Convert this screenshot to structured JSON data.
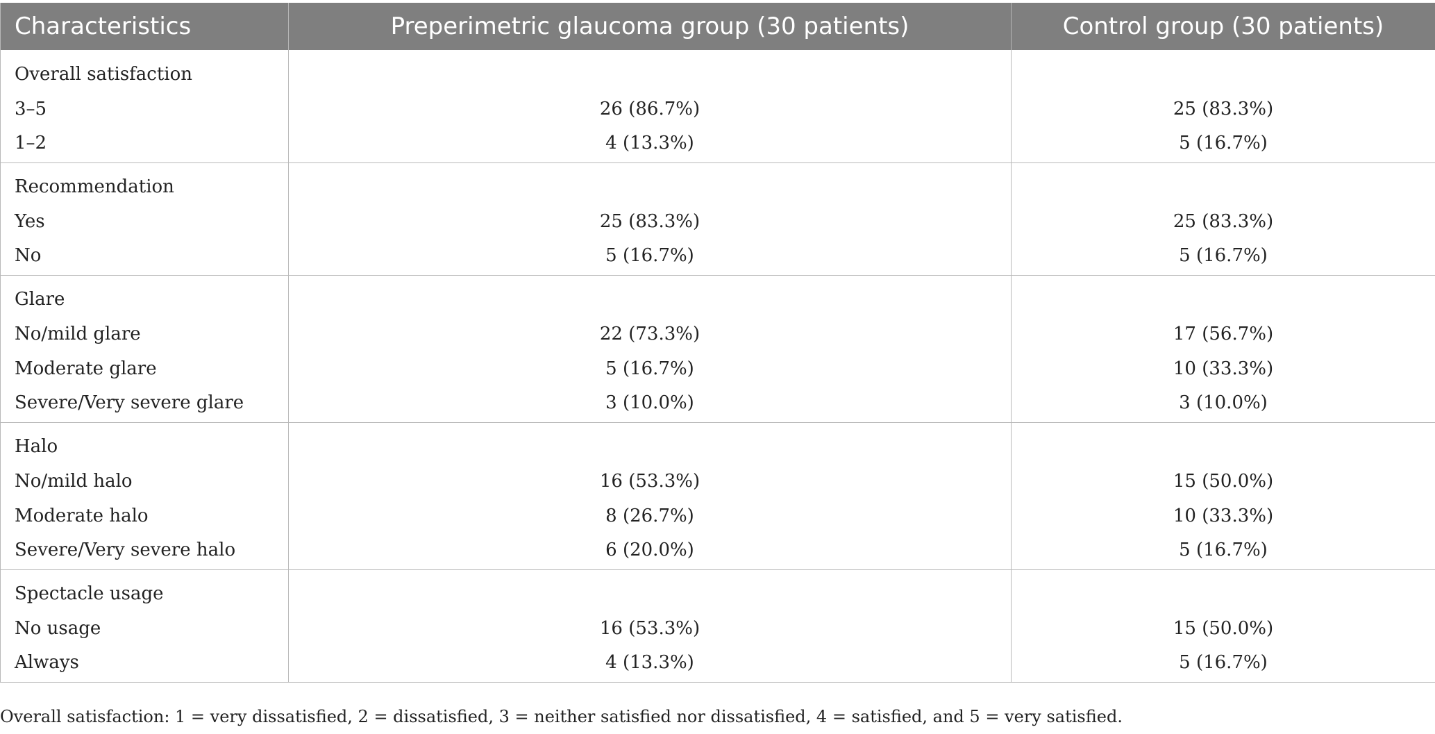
{
  "table": {
    "headers": [
      "Characteristics",
      "Preperimetric glaucoma group (30 patients)",
      "Control group (30 patients)"
    ],
    "groups": [
      {
        "title": "Overall satisfaction",
        "rows": [
          {
            "label": "3–5",
            "ppg": "26 (86.7%)",
            "control": "25 (83.3%)"
          },
          {
            "label": "1–2",
            "ppg": "4 (13.3%)",
            "control": "5 (16.7%)"
          }
        ]
      },
      {
        "title": "Recommendation",
        "rows": [
          {
            "label": "Yes",
            "ppg": "25 (83.3%)",
            "control": "25 (83.3%)"
          },
          {
            "label": "No",
            "ppg": "5 (16.7%)",
            "control": "5 (16.7%)"
          }
        ]
      },
      {
        "title": "Glare",
        "rows": [
          {
            "label": "No/mild glare",
            "ppg": "22 (73.3%)",
            "control": "17 (56.7%)"
          },
          {
            "label": "Moderate glare",
            "ppg": "5 (16.7%)",
            "control": "10 (33.3%)"
          },
          {
            "label": "Severe/Very severe glare",
            "ppg": "3 (10.0%)",
            "control": "3 (10.0%)"
          }
        ]
      },
      {
        "title": "Halo",
        "rows": [
          {
            "label": "No/mild halo",
            "ppg": "16 (53.3%)",
            "control": "15 (50.0%)"
          },
          {
            "label": "Moderate halo",
            "ppg": "8 (26.7%)",
            "control": "10 (33.3%)"
          },
          {
            "label": "Severe/Very severe halo",
            "ppg": "6 (20.0%)",
            "control": "5 (16.7%)"
          }
        ]
      },
      {
        "title": "Spectacle usage",
        "rows": [
          {
            "label": "No usage",
            "ppg": "16 (53.3%)",
            "control": "15 (50.0%)"
          },
          {
            "label": "Always",
            "ppg": "4 (13.3%)",
            "control": "5 (16.7%)"
          }
        ]
      }
    ]
  },
  "footnote": "Overall satisfaction: 1 = very dissatisfied, 2 = dissatisfied, 3 = neither satisfied nor dissatisfied, 4 = satisfied, and 5 = very satisfied.",
  "colors": {
    "header_bg": "#7f7f7f",
    "header_text": "#ffffff",
    "rule": "#b8b8b8",
    "body_text": "#222222"
  }
}
